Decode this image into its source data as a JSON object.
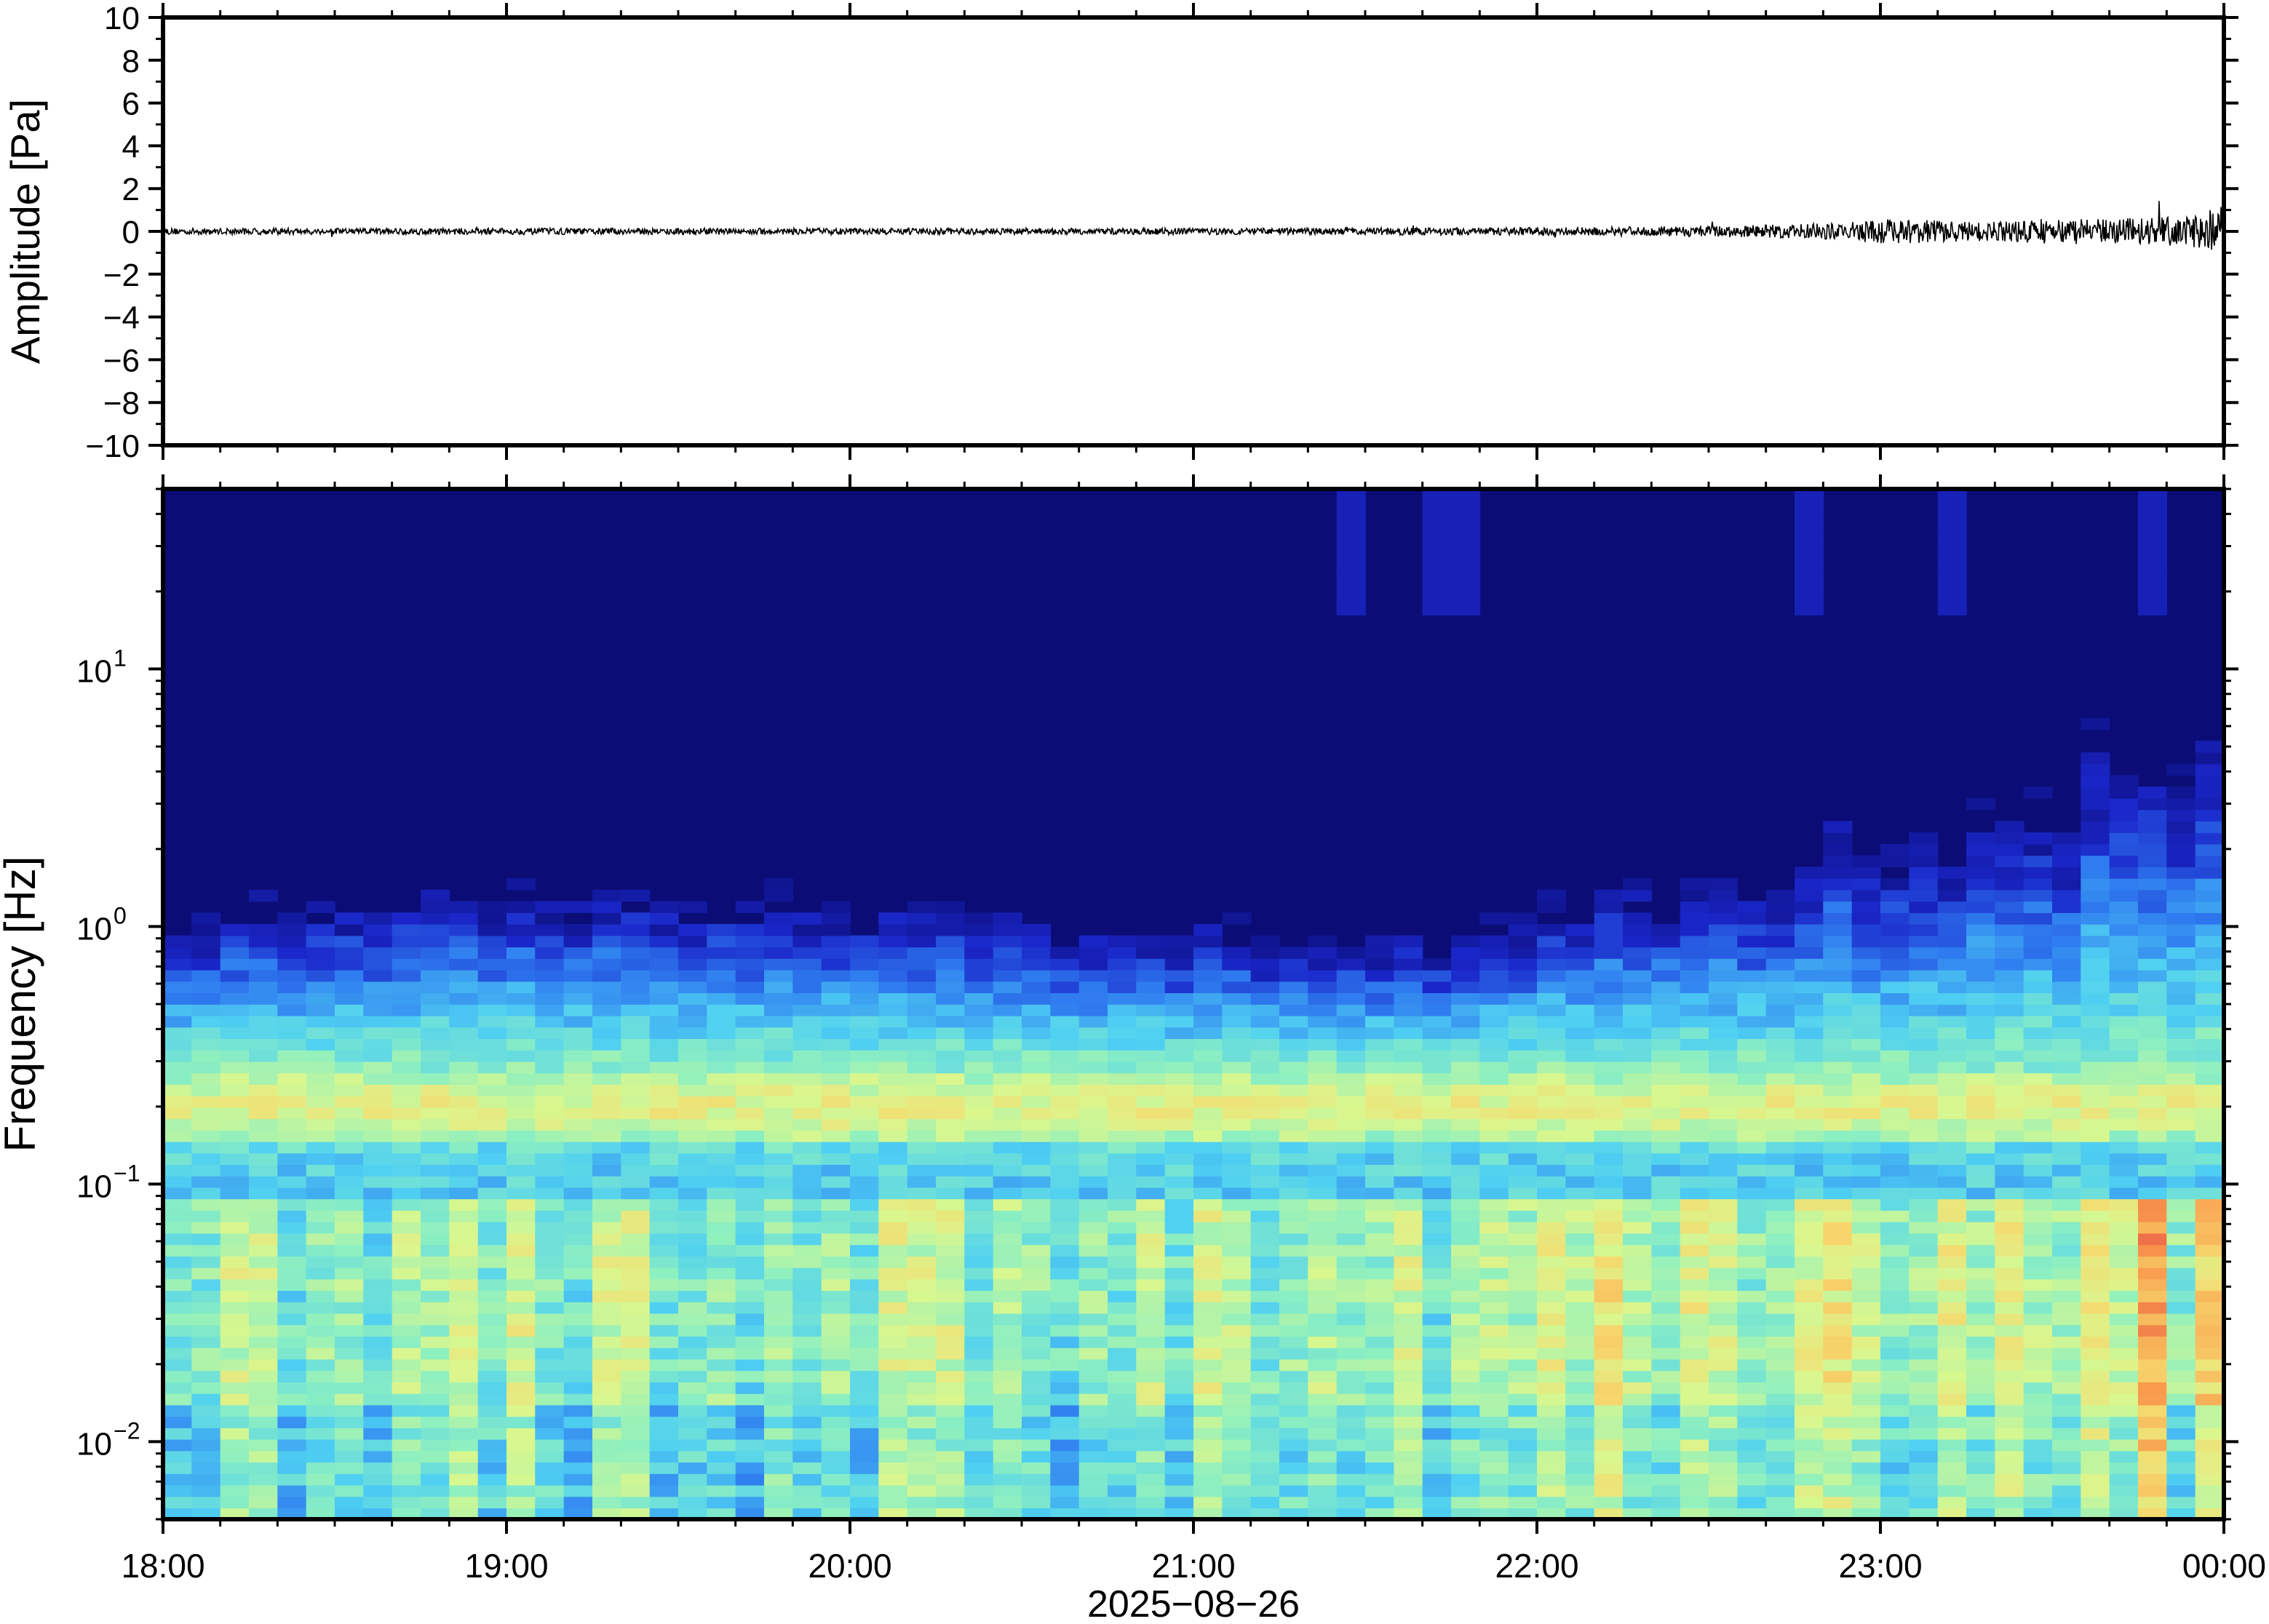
{
  "chart_data": [
    {
      "type": "line",
      "panel": "waveform",
      "ylabel": "Amplitude [Pa]",
      "ylim": [
        -10,
        10
      ],
      "yticks": [
        {
          "v": 10,
          "label": "10"
        },
        {
          "v": 8,
          "label": "8"
        },
        {
          "v": 6,
          "label": "6"
        },
        {
          "v": 4,
          "label": "4"
        },
        {
          "v": 2,
          "label": "2"
        },
        {
          "v": 0,
          "label": "0"
        },
        {
          "v": -2,
          "label": "−2"
        },
        {
          "v": -4,
          "label": "−4"
        },
        {
          "v": -6,
          "label": "−6"
        },
        {
          "v": -8,
          "label": "−8"
        },
        {
          "v": -10,
          "label": "−10"
        }
      ],
      "xlim": [
        "18:00",
        "00:00"
      ],
      "x_hours": [
        0,
        1,
        2,
        3,
        4,
        4.5,
        4.9,
        5.0,
        5.3,
        5.5,
        5.7,
        5.9,
        6.0
      ],
      "envelope_pa": [
        0.15,
        0.15,
        0.15,
        0.15,
        0.18,
        0.25,
        0.4,
        0.6,
        0.45,
        0.6,
        0.6,
        0.7,
        1.2
      ],
      "grid": false
    },
    {
      "type": "heatmap",
      "panel": "spectrogram",
      "ylabel": "Frequency [Hz]",
      "yscale": "log",
      "ylim_hz": [
        0.005,
        50
      ],
      "yticks": [
        {
          "v": 0.01,
          "base": "10",
          "exp": "−2"
        },
        {
          "v": 0.1,
          "base": "10",
          "exp": "−1"
        },
        {
          "v": 1,
          "base": "10",
          "exp": "0"
        },
        {
          "v": 10,
          "base": "10",
          "exp": "1"
        }
      ],
      "xlim": [
        "18:00",
        "00:00"
      ],
      "xticks": [
        "18:00",
        "19:00",
        "20:00",
        "21:00",
        "22:00",
        "23:00",
        "00:00"
      ],
      "xlabel": "2025−08−26",
      "colormap": [
        "#0b0c75",
        "#1a26c9",
        "#2f7df0",
        "#4fd0f2",
        "#8ef0c0",
        "#d9f78e",
        "#f6d96e",
        "#f99a4c",
        "#e44b4a"
      ],
      "microseism_peak_hz": 0.2,
      "grid": false
    }
  ]
}
